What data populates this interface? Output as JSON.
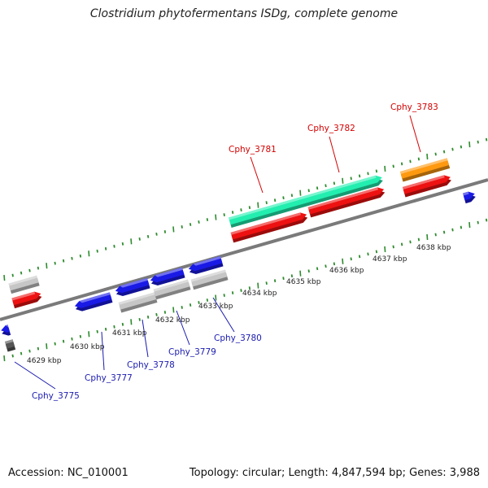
{
  "title": "Clostridium phytofermentans ISDg, complete genome",
  "accession": "Accession: NC_010001",
  "summary": "Topology: circular; Length: 4,847,594 bp; Genes: 3,988",
  "colors": {
    "backbone": "#7a7a7a",
    "tick": "#2e8b2e",
    "forward_label": "#d40000",
    "reverse_label": "#1a1ab0",
    "blue": "#1a1ae6",
    "red": "#ee1111",
    "gray": "#c6c6c6",
    "dark_gray": "#555555",
    "teal": "#22eeb0",
    "orange": "#ff9910"
  },
  "kbp_labels": [
    {
      "text": "4629 kbp",
      "kbp": 4629
    },
    {
      "text": "4630 kbp",
      "kbp": 4630
    },
    {
      "text": "4631 kbp",
      "kbp": 4631
    },
    {
      "text": "4632 kbp",
      "kbp": 4632
    },
    {
      "text": "4633 kbp",
      "kbp": 4633
    },
    {
      "text": "4634 kbp",
      "kbp": 4634
    },
    {
      "text": "4635 kbp",
      "kbp": 4635
    },
    {
      "text": "4636 kbp",
      "kbp": 4636
    },
    {
      "text": "4637 kbp",
      "kbp": 4637
    },
    {
      "text": "4638 kbp",
      "kbp": 4638
    }
  ],
  "gene_labels": [
    {
      "text": "Cphy_3775",
      "strand": "reverse"
    },
    {
      "text": "Cphy_3777",
      "strand": "reverse"
    },
    {
      "text": "Cphy_3778",
      "strand": "reverse"
    },
    {
      "text": "Cphy_3779",
      "strand": "reverse"
    },
    {
      "text": "Cphy_3780",
      "strand": "reverse"
    },
    {
      "text": "Cphy_3781",
      "strand": "forward"
    },
    {
      "text": "Cphy_3782",
      "strand": "forward"
    },
    {
      "text": "Cphy_3783",
      "strand": "forward"
    }
  ]
}
